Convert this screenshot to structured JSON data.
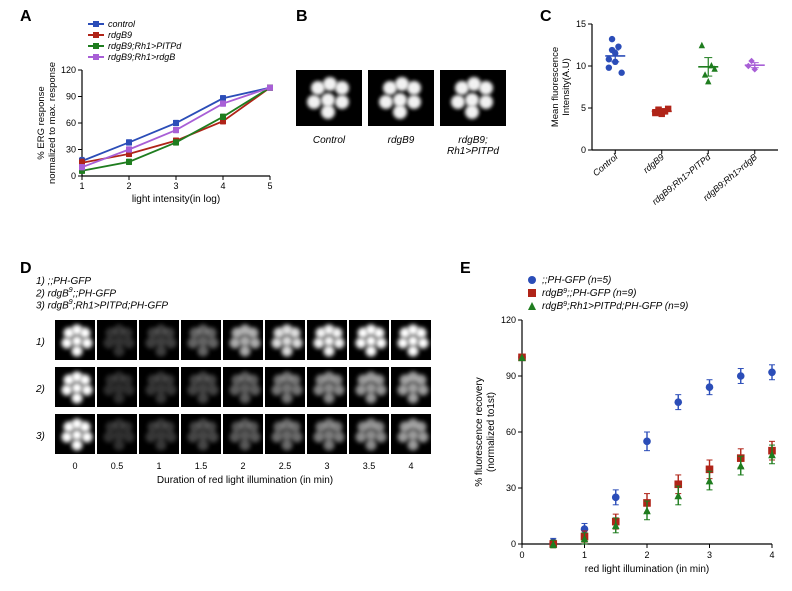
{
  "panelA": {
    "label": "A",
    "type": "line",
    "xlabel": "light intensity(in log)",
    "ylabel": "% ERG response\nnormalized to max. response",
    "xlim": [
      1,
      5
    ],
    "xtick_step": 1,
    "ylim": [
      0,
      120
    ],
    "ytick_step": 30,
    "background_color": "#ffffff",
    "axis_color": "#000000",
    "label_fontsize": 10,
    "tick_fontsize": 9,
    "series": [
      {
        "name": "control",
        "color": "#2b4db8",
        "marker": "square",
        "x": [
          1,
          2,
          3,
          4,
          5
        ],
        "y": [
          17,
          38,
          60,
          88,
          100
        ],
        "err": [
          4,
          3,
          3,
          3,
          2
        ]
      },
      {
        "name": "rdgB9",
        "color": "#b02418",
        "marker": "square",
        "x": [
          1,
          2,
          3,
          4,
          5
        ],
        "y": [
          15,
          25,
          40,
          62,
          100
        ],
        "err": [
          4,
          3,
          3,
          3,
          2
        ]
      },
      {
        "name": "rdgB9;Rh1>PITPd",
        "color": "#1f7d1f",
        "marker": "square",
        "x": [
          1,
          2,
          3,
          4,
          5
        ],
        "y": [
          6,
          16,
          38,
          67,
          100
        ],
        "err": [
          3,
          3,
          3,
          3,
          2
        ]
      },
      {
        "name": "rdgB9;Rh1>rdgB",
        "color": "#a85fd6",
        "marker": "square",
        "x": [
          1,
          2,
          3,
          4,
          5
        ],
        "y": [
          10,
          30,
          52,
          82,
          100
        ],
        "err": [
          3,
          3,
          3,
          3,
          2
        ]
      }
    ]
  },
  "panelB": {
    "label": "B",
    "images": [
      {
        "caption": "Control"
      },
      {
        "caption": "rdgB9"
      },
      {
        "caption": "rdgB9;\nRh1>PITPd"
      }
    ]
  },
  "panelC": {
    "label": "C",
    "type": "scatter",
    "ylabel": "Mean fluorescence\nIntensity(A.U)",
    "ylim": [
      0,
      15
    ],
    "ytick_step": 5,
    "categories": [
      "Control",
      "rdgB9",
      "rdgB9;Rh1>PITPd",
      "rdgB9;Rh1>rdgB"
    ],
    "background_color": "#ffffff",
    "axis_color": "#000000",
    "series": [
      {
        "name": "Control",
        "color": "#2b4db8",
        "marker": "circle",
        "points": [
          10.8,
          13.2,
          11.5,
          12.3,
          9.2,
          9.8,
          11.9,
          10.5
        ],
        "mean": 11.2,
        "sem": 0.7
      },
      {
        "name": "rdgB9",
        "color": "#b02418",
        "marker": "square",
        "points": [
          4.5,
          4.8,
          4.3,
          4.6,
          4.9,
          4.4,
          4.7,
          4.5,
          4.6
        ],
        "mean": 4.6,
        "sem": 0.25
      },
      {
        "name": "rdgB9;Rh1>PITPd",
        "color": "#1f7d1f",
        "marker": "triangle",
        "points": [
          12.5,
          9.0,
          8.2,
          10.1,
          9.7
        ],
        "mean": 9.9,
        "sem": 1.1
      },
      {
        "name": "rdgB9;Rh1>rdgB",
        "color": "#a85fd6",
        "marker": "diamond",
        "points": [
          10.0,
          10.6,
          9.6
        ],
        "mean": 10.1,
        "sem": 0.3
      }
    ]
  },
  "panelD": {
    "label": "D",
    "legend": [
      "1) ;;PH-GFP",
      "2) rdgB9;;PH-GFP",
      "3) rdgB9;Rh1>PITPd;PH-GFP"
    ],
    "rows": [
      "1)",
      "2)",
      "3)"
    ],
    "times": [
      0,
      0.5,
      1,
      1.5,
      2,
      2.5,
      3,
      3.5,
      4
    ],
    "xlabel": "Duration of red light illumination (in min)",
    "intensity": {
      "1": [
        1.0,
        0.05,
        0.1,
        0.25,
        0.55,
        0.75,
        0.85,
        0.9,
        0.92
      ],
      "2": [
        1.0,
        0.03,
        0.06,
        0.12,
        0.22,
        0.32,
        0.4,
        0.46,
        0.5
      ],
      "3": [
        1.0,
        0.04,
        0.07,
        0.13,
        0.2,
        0.28,
        0.35,
        0.42,
        0.48
      ]
    }
  },
  "panelE": {
    "label": "E",
    "type": "scatter-line",
    "xlabel": "red light illumination (in min)",
    "ylabel": "% fluorescence recovery\n(normalized to1st)",
    "xlim": [
      0,
      4
    ],
    "xtick_step": 1,
    "ylim": [
      0,
      120
    ],
    "ytick_step": 30,
    "series": [
      {
        "name": ";;PH-GFP (n=5)",
        "color": "#2b4db8",
        "marker": "circle",
        "x": [
          0,
          0.5,
          1,
          1.5,
          2,
          2.5,
          3,
          3.5,
          4
        ],
        "y": [
          100,
          1,
          8,
          25,
          55,
          76,
          84,
          90,
          92
        ],
        "err": [
          0,
          2,
          3,
          4,
          5,
          4,
          4,
          4,
          4
        ]
      },
      {
        "name": "rdgB9;;PH-GFP (n=9)",
        "color": "#b02418",
        "marker": "square",
        "x": [
          0,
          0.5,
          1,
          1.5,
          2,
          2.5,
          3,
          3.5,
          4
        ],
        "y": [
          100,
          0,
          4,
          12,
          22,
          32,
          40,
          46,
          50
        ],
        "err": [
          0,
          2,
          3,
          4,
          5,
          5,
          5,
          5,
          5
        ]
      },
      {
        "name": "rdgB9;Rh1>PITPd;PH-GFP (n=9)",
        "color": "#1f7d1f",
        "marker": "triangle",
        "x": [
          0,
          0.5,
          1,
          1.5,
          2,
          2.5,
          3,
          3.5,
          4
        ],
        "y": [
          100,
          0,
          3,
          10,
          18,
          26,
          34,
          42,
          48
        ],
        "err": [
          0,
          2,
          3,
          4,
          5,
          5,
          5,
          5,
          5
        ]
      }
    ]
  }
}
